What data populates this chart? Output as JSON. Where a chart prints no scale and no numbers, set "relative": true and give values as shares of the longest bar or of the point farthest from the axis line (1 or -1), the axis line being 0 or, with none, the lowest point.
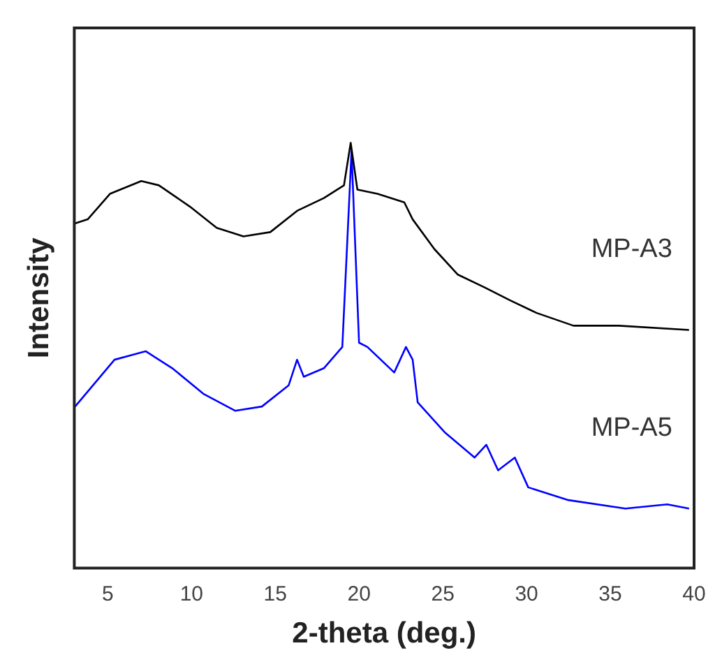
{
  "chart_data": {
    "type": "line",
    "relative": true,
    "xlabel": "2-theta (deg.)",
    "ylabel": "Intensity",
    "xlim": [
      3,
      40
    ],
    "xticks": [
      5,
      10,
      15,
      20,
      25,
      30,
      35,
      40
    ],
    "grid": false,
    "legend": false,
    "marker": "none",
    "line_style": "solid",
    "series": [
      {
        "name": "MP-A3",
        "color": "#000000",
        "x": [
          3.0,
          3.8,
          5.13,
          7.0,
          8.05,
          9.9,
          11.5,
          13.1,
          14.7,
          16.3,
          17.9,
          19.1,
          19.5,
          19.9,
          21.1,
          22.7,
          23.2,
          24.5,
          25.9,
          27.5,
          29.0,
          30.6,
          32.8,
          35.5,
          39.7
        ],
        "values": [
          0.81,
          0.82,
          0.88,
          0.91,
          0.9,
          0.85,
          0.8,
          0.78,
          0.79,
          0.84,
          0.87,
          0.9,
          1,
          0.89,
          0.88,
          0.86,
          0.82,
          0.75,
          0.69,
          0.66,
          0.63,
          0.6,
          0.57,
          0.57,
          0.56
        ]
      },
      {
        "name": "MP-A5",
        "color": "#0000ff",
        "x": [
          3.05,
          5.4,
          7.26,
          8.85,
          10.7,
          12.6,
          14.2,
          15.8,
          16.3,
          16.7,
          17.9,
          19.0,
          19.55,
          20.0,
          20.5,
          22.1,
          22.8,
          23.2,
          23.5,
          25.1,
          26.9,
          27.6,
          28.3,
          29.3,
          30.1,
          32.5,
          35.9,
          38.4,
          39.7
        ],
        "values": [
          0.38,
          0.49,
          0.51,
          0.47,
          0.41,
          0.37,
          0.38,
          0.43,
          0.49,
          0.45,
          0.47,
          0.52,
          0.98,
          0.53,
          0.52,
          0.46,
          0.52,
          0.49,
          0.39,
          0.32,
          0.26,
          0.29,
          0.23,
          0.26,
          0.19,
          0.16,
          0.14,
          0.15,
          0.14
        ]
      }
    ]
  }
}
